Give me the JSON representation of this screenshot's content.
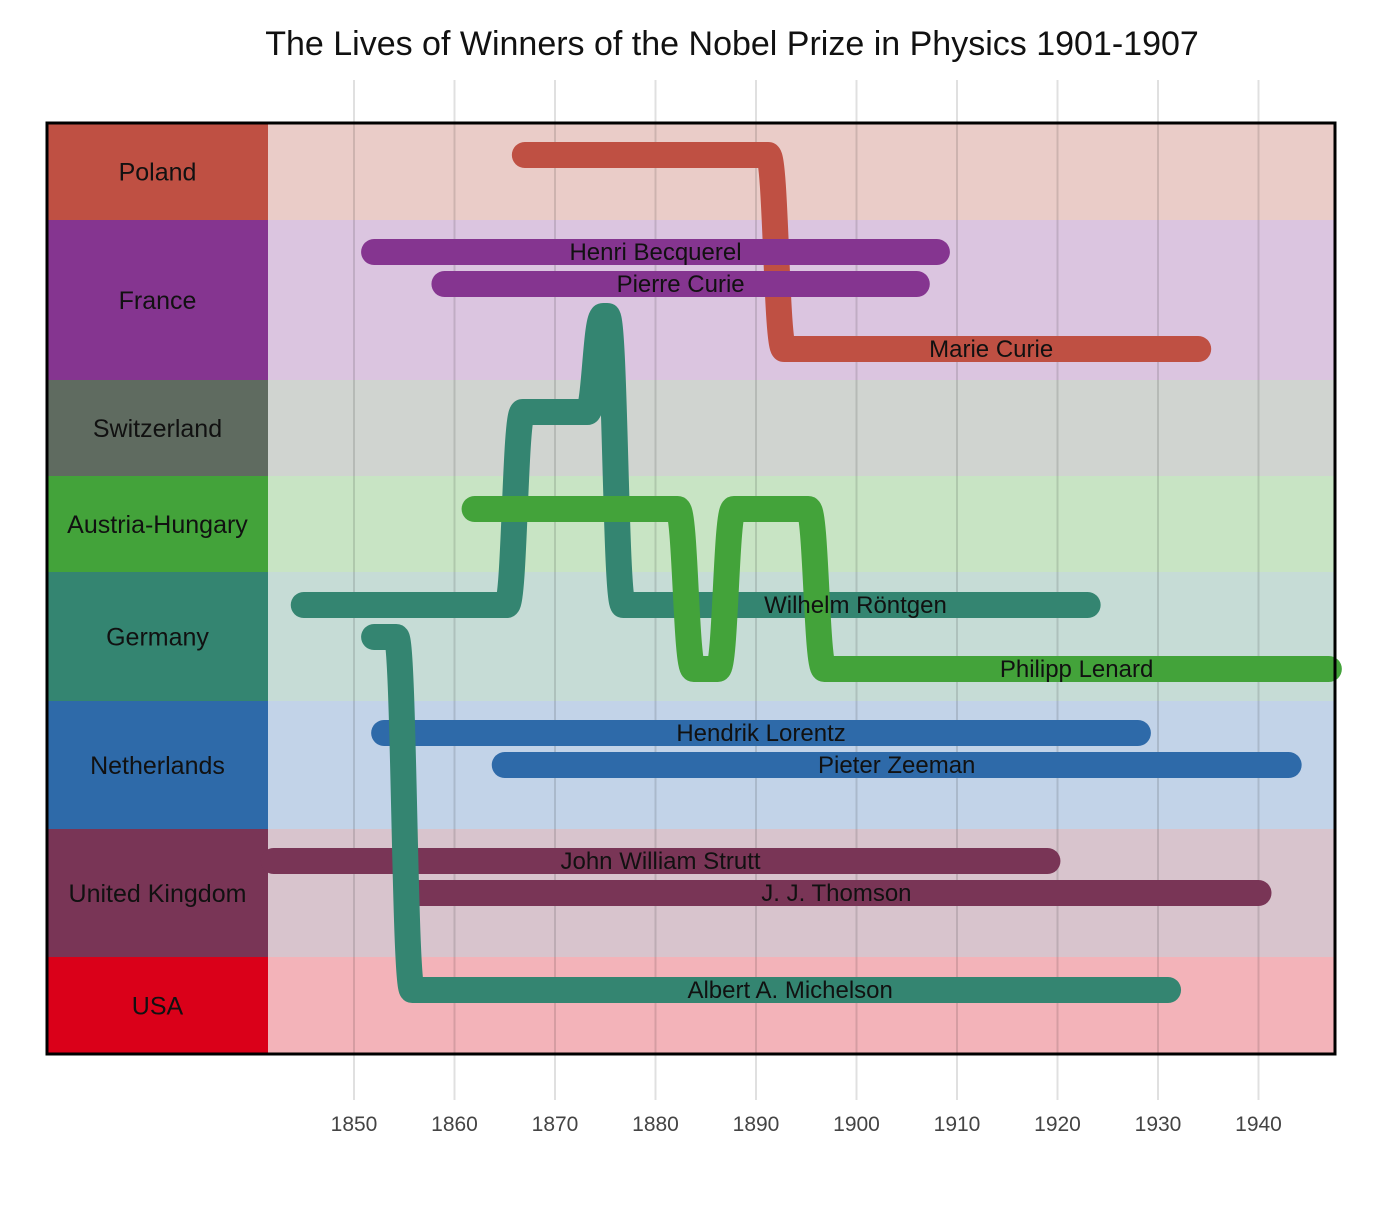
{
  "chart_data": {
    "type": "timeline",
    "title": "The Lives of Winners of the Nobel Prize in Physics 1901-1907",
    "xlim": [
      1839,
      1947
    ],
    "x_ticks": [
      1850,
      1860,
      1870,
      1880,
      1890,
      1900,
      1910,
      1920,
      1930,
      1940
    ],
    "countries": [
      {
        "name": "Poland",
        "color": "#bf5043",
        "band": "#eaccc8"
      },
      {
        "name": "France",
        "color": "#853590",
        "band": "#dbc5e0"
      },
      {
        "name": "Switzerland",
        "color": "#5f6b60",
        "band": "#d0d4d0"
      },
      {
        "name": "Austria-Hungary",
        "color": "#43a33a",
        "band": "#c8e4c4"
      },
      {
        "name": "Germany",
        "color": "#348571",
        "band": "#c6dcd6"
      },
      {
        "name": "Netherlands",
        "color": "#2e6aa9",
        "band": "#c2d3e8"
      },
      {
        "name": "United Kingdom",
        "color": "#793556",
        "band": "#d8c4cd"
      },
      {
        "name": "USA",
        "color": "#da0019",
        "band": "#f3b3b9"
      }
    ],
    "people": [
      {
        "name": "Marie Curie",
        "born": 1867,
        "died": 1934,
        "path": [
          [
            "Poland",
            1867
          ],
          [
            "France",
            1892
          ]
        ]
      },
      {
        "name": "Henri Becquerel",
        "born": 1852,
        "died": 1908,
        "path": [
          [
            "France",
            1852
          ]
        ]
      },
      {
        "name": "Pierre Curie",
        "born": 1859,
        "died": 1906,
        "path": [
          [
            "France",
            1859
          ]
        ]
      },
      {
        "name": "Wilhelm Röntgen",
        "born": 1845,
        "died": 1923,
        "path": [
          [
            "Germany",
            1845
          ],
          [
            "Switzerland",
            1866
          ],
          [
            "France",
            1874
          ],
          [
            "Germany",
            1876
          ]
        ]
      },
      {
        "name": "Philipp Lenard",
        "born": 1862,
        "died": 1947,
        "path": [
          [
            "Austria-Hungary",
            1862
          ],
          [
            "Germany",
            1883
          ],
          [
            "Austria-Hungary",
            1887
          ],
          [
            "Germany",
            1896
          ]
        ]
      },
      {
        "name": "Hendrik Lorentz",
        "born": 1853,
        "died": 1928,
        "path": [
          [
            "Netherlands",
            1853
          ]
        ]
      },
      {
        "name": "Pieter Zeeman",
        "born": 1865,
        "died": 1943,
        "path": [
          [
            "Netherlands",
            1865
          ]
        ]
      },
      {
        "name": "John William Strutt",
        "born": 1842,
        "died": 1919,
        "path": [
          [
            "United Kingdom",
            1842
          ]
        ]
      },
      {
        "name": "J. J. Thomson",
        "born": 1856,
        "died": 1940,
        "path": [
          [
            "United Kingdom",
            1856
          ]
        ]
      },
      {
        "name": "Albert A. Michelson",
        "born": 1852,
        "died": 1931,
        "path": [
          [
            "Germany",
            1852
          ],
          [
            "USA",
            1855
          ]
        ]
      }
    ]
  }
}
